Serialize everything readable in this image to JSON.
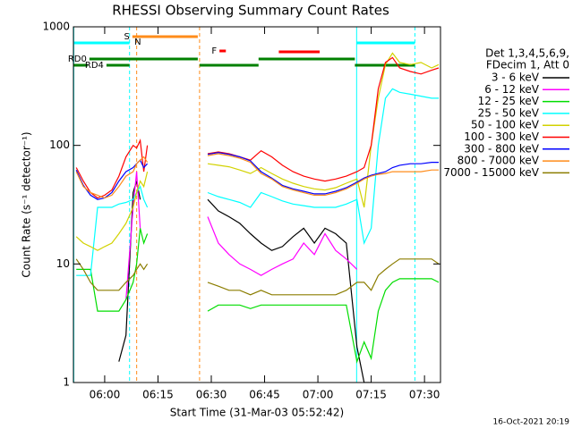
{
  "chart_data": {
    "type": "line",
    "title": "RHESSI Observing Summary Count Rates",
    "xlabel": "Start Time (31-Mar-03 05:52:42)",
    "ylabel": "Count Rate (s⁻¹ detector⁻¹)",
    "footer": "16-Oct-2021 20:19",
    "legend_header": [
      "Det 1,3,4,5,6,9,",
      "FDecim 1, Att 0"
    ],
    "log_y": true,
    "xlim": [
      351.2,
      454.5
    ],
    "ylim": [
      1,
      1000
    ],
    "yticks": [
      1,
      10,
      100,
      1000
    ],
    "xticks": [
      {
        "value": 360,
        "label": "06:00"
      },
      {
        "value": 375,
        "label": "06:15"
      },
      {
        "value": 390,
        "label": "06:30"
      },
      {
        "value": 405,
        "label": "06:45"
      },
      {
        "value": 420,
        "label": "07:00"
      },
      {
        "value": 435,
        "label": "07:15"
      },
      {
        "value": 450,
        "label": "07:30"
      }
    ],
    "x": [
      352,
      354,
      356,
      358,
      360,
      362,
      364,
      366,
      368,
      369,
      370,
      371,
      372,
      380,
      389,
      392,
      395,
      398,
      401,
      404,
      407,
      410,
      413,
      416,
      419,
      422,
      425,
      428,
      431,
      433,
      435,
      437,
      439,
      441,
      443,
      446,
      449,
      452,
      454
    ],
    "series": [
      {
        "name": "3 - 6 keV",
        "color": "#000000",
        "values": [
          null,
          null,
          null,
          null,
          null,
          null,
          1.5,
          2.5,
          40,
          50,
          35,
          null,
          null,
          null,
          35,
          28,
          25,
          22,
          18,
          15,
          13,
          14,
          17,
          20,
          15,
          20,
          18,
          15,
          2,
          1,
          1,
          null,
          null,
          null,
          null,
          null,
          null,
          null,
          null
        ]
      },
      {
        "name": "6 - 12 keV",
        "color": "#ff00ff",
        "values": [
          null,
          null,
          null,
          null,
          null,
          null,
          null,
          5,
          30,
          60,
          20,
          null,
          null,
          null,
          25,
          15,
          12,
          10,
          9,
          8,
          9,
          10,
          11,
          15,
          12,
          18,
          13,
          11,
          9,
          null,
          null,
          null,
          null,
          null,
          null,
          null,
          null,
          null,
          null
        ]
      },
      {
        "name": "12 - 25 keV",
        "color": "#00dd00",
        "values": [
          9,
          9,
          9,
          4,
          4,
          4,
          4,
          5,
          7,
          10,
          20,
          15,
          18,
          null,
          4,
          4.5,
          4.5,
          4.5,
          4.2,
          4.5,
          4.5,
          4.5,
          4.5,
          4.5,
          4.5,
          4.5,
          4.5,
          4.5,
          1.5,
          2.2,
          1.6,
          4,
          6,
          7,
          7.5,
          7.5,
          7.5,
          7.5,
          7
        ]
      },
      {
        "name": "25 - 50 keV",
        "color": "#00ffff",
        "values": [
          8,
          8,
          8,
          30,
          30,
          30,
          32,
          33,
          35,
          40,
          45,
          35,
          30,
          null,
          40,
          37,
          35,
          33,
          30,
          40,
          37,
          34,
          32,
          31,
          30,
          30,
          30,
          32,
          35,
          15,
          20,
          100,
          250,
          300,
          280,
          270,
          260,
          250,
          250
        ]
      },
      {
        "name": "50 - 100 keV",
        "color": "#d2d200",
        "values": [
          17,
          15,
          14,
          13,
          14,
          15,
          18,
          22,
          30,
          40,
          50,
          45,
          60,
          null,
          70,
          68,
          66,
          62,
          58,
          65,
          58,
          52,
          48,
          45,
          43,
          42,
          44,
          48,
          52,
          30,
          100,
          250,
          480,
          600,
          500,
          480,
          500,
          450,
          480
        ]
      },
      {
        "name": "100 - 300 keV",
        "color": "#ff0000",
        "values": [
          65,
          50,
          40,
          36,
          38,
          42,
          55,
          80,
          100,
          95,
          110,
          60,
          100,
          null,
          85,
          88,
          85,
          80,
          75,
          90,
          80,
          68,
          60,
          55,
          52,
          50,
          52,
          55,
          60,
          65,
          100,
          300,
          500,
          550,
          450,
          420,
          400,
          430,
          450
        ]
      },
      {
        "name": "300 - 800 keV",
        "color": "#0000ff",
        "values": [
          62,
          46,
          38,
          35,
          36,
          40,
          50,
          60,
          65,
          70,
          75,
          65,
          70,
          null,
          84,
          87,
          84,
          80,
          74,
          60,
          53,
          46,
          43,
          41,
          39,
          39,
          41,
          44,
          49,
          53,
          56,
          58,
          60,
          65,
          68,
          70,
          70,
          72,
          72
        ]
      },
      {
        "name": "800 - 7000 keV",
        "color": "#ff8c1a",
        "values": [
          60,
          45,
          40,
          38,
          36,
          38,
          45,
          55,
          60,
          70,
          75,
          80,
          72,
          null,
          82,
          85,
          82,
          78,
          72,
          58,
          52,
          45,
          42,
          40,
          38,
          38,
          40,
          43,
          48,
          52,
          55,
          57,
          58,
          60,
          60,
          60,
          60,
          62,
          62
        ]
      },
      {
        "name": "7000 - 15000 keV",
        "color": "#8b7d00",
        "values": [
          11,
          9,
          7,
          6,
          6,
          6,
          6,
          7,
          8,
          9,
          10,
          9,
          10,
          null,
          7,
          6.5,
          6,
          6,
          5.5,
          6,
          5.5,
          5.5,
          5.5,
          5.5,
          5.5,
          5.5,
          5.5,
          6,
          7,
          7,
          6,
          8,
          9,
          10,
          11,
          11,
          11,
          11,
          10
        ]
      }
    ],
    "flags": [
      {
        "label": "S",
        "color": "#ff8c1a",
        "start": 367.8,
        "end": 386.2
      },
      {
        "label": "N",
        "color": "#00ffff",
        "start": 371,
        "end": 371
      },
      {
        "color": "#00ffff",
        "start": 351.2,
        "end": 367.0
      },
      {
        "color": "#00ffff",
        "start": 430.9,
        "end": 447.3
      },
      {
        "label": "F",
        "color": "#ff0000",
        "start": 392.3,
        "end": 394.1
      },
      {
        "color": "#ff0000",
        "start": 409,
        "end": 420.5
      },
      {
        "label": "RD0",
        "color": "#008000",
        "start": 355.7,
        "end": 386.2
      },
      {
        "label": "RD4",
        "color": "#008000",
        "start": 360.5,
        "end": 367.0
      },
      {
        "color": "#008000",
        "start": 351.2,
        "end": 355.2
      },
      {
        "color": "#008000",
        "start": 386.7,
        "end": 403.3
      },
      {
        "color": "#008000",
        "start": 403.3,
        "end": 430.4
      },
      {
        "color": "#008000",
        "start": 430.4,
        "end": 447.3
      }
    ],
    "vlines": [
      {
        "x": 351.3,
        "color": "#00ffff",
        "dashed": false
      },
      {
        "x": 367.0,
        "color": "#00ffff",
        "dashed": true
      },
      {
        "x": 369.0,
        "color": "#ff8c1a",
        "dashed": true
      },
      {
        "x": 386.7,
        "color": "#ff8c1a",
        "dashed": true
      },
      {
        "x": 430.9,
        "color": "#00ffff",
        "dashed": false
      },
      {
        "x": 447.3,
        "color": "#00ffff",
        "dashed": true
      }
    ]
  }
}
